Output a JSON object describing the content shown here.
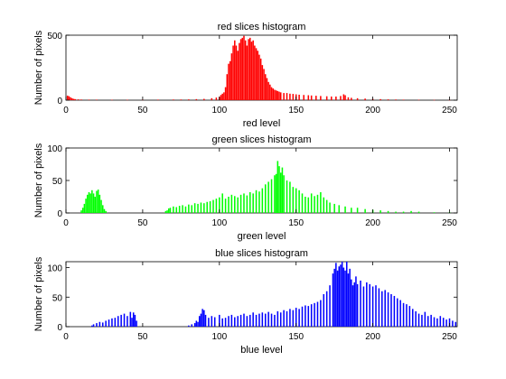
{
  "chart_data": [
    {
      "type": "bar",
      "title": "red slices histogram",
      "xlabel": "red level",
      "ylabel": "Number of pixels",
      "color": "#ff0000",
      "xlim": [
        0,
        255
      ],
      "ylim": [
        0,
        500
      ],
      "xticks": [
        0,
        50,
        100,
        150,
        200,
        250
      ],
      "yticks": [
        0,
        500
      ],
      "grid": false,
      "points": [
        [
          1,
          35
        ],
        [
          2,
          30
        ],
        [
          3,
          22
        ],
        [
          4,
          15
        ],
        [
          5,
          10
        ],
        [
          6,
          8
        ],
        [
          8,
          6
        ],
        [
          10,
          5
        ],
        [
          15,
          4
        ],
        [
          20,
          4
        ],
        [
          30,
          3
        ],
        [
          40,
          3
        ],
        [
          50,
          3
        ],
        [
          60,
          4
        ],
        [
          70,
          5
        ],
        [
          75,
          5
        ],
        [
          80,
          6
        ],
        [
          85,
          8
        ],
        [
          90,
          10
        ],
        [
          95,
          15
        ],
        [
          98,
          20
        ],
        [
          100,
          25
        ],
        [
          101,
          40
        ],
        [
          102,
          50
        ],
        [
          103,
          60
        ],
        [
          104,
          100
        ],
        [
          105,
          200
        ],
        [
          106,
          280
        ],
        [
          107,
          300
        ],
        [
          108,
          360
        ],
        [
          109,
          420
        ],
        [
          110,
          460
        ],
        [
          111,
          420
        ],
        [
          112,
          380
        ],
        [
          113,
          440
        ],
        [
          114,
          470
        ],
        [
          115,
          480
        ],
        [
          116,
          495
        ],
        [
          117,
          460
        ],
        [
          118,
          420
        ],
        [
          119,
          470
        ],
        [
          120,
          480
        ],
        [
          121,
          450
        ],
        [
          122,
          460
        ],
        [
          123,
          420
        ],
        [
          124,
          400
        ],
        [
          125,
          380
        ],
        [
          126,
          350
        ],
        [
          127,
          320
        ],
        [
          128,
          270
        ],
        [
          129,
          240
        ],
        [
          130,
          200
        ],
        [
          131,
          170
        ],
        [
          132,
          140
        ],
        [
          133,
          120
        ],
        [
          134,
          100
        ],
        [
          135,
          90
        ],
        [
          136,
          80
        ],
        [
          137,
          75
        ],
        [
          138,
          70
        ],
        [
          139,
          65
        ],
        [
          140,
          60
        ],
        [
          142,
          55
        ],
        [
          144,
          55
        ],
        [
          146,
          50
        ],
        [
          148,
          48
        ],
        [
          150,
          45
        ],
        [
          152,
          42
        ],
        [
          155,
          40
        ],
        [
          158,
          38
        ],
        [
          160,
          36
        ],
        [
          163,
          34
        ],
        [
          166,
          32
        ],
        [
          170,
          30
        ],
        [
          173,
          28
        ],
        [
          176,
          28
        ],
        [
          179,
          32
        ],
        [
          181,
          45
        ],
        [
          182,
          38
        ],
        [
          184,
          22
        ],
        [
          186,
          18
        ],
        [
          190,
          15
        ],
        [
          195,
          12
        ],
        [
          200,
          10
        ],
        [
          205,
          8
        ],
        [
          210,
          6
        ],
        [
          215,
          5
        ],
        [
          220,
          4
        ],
        [
          230,
          3
        ],
        [
          240,
          2
        ],
        [
          250,
          2
        ]
      ]
    },
    {
      "type": "bar",
      "title": "green slices histogram",
      "xlabel": "green level",
      "ylabel": "Number of pixels",
      "color": "#00ff00",
      "xlim": [
        0,
        255
      ],
      "ylim": [
        0,
        100
      ],
      "xticks": [
        0,
        50,
        100,
        150,
        200,
        250
      ],
      "yticks": [
        0,
        50,
        100
      ],
      "grid": false,
      "points": [
        [
          10,
          4
        ],
        [
          11,
          8
        ],
        [
          12,
          14
        ],
        [
          13,
          22
        ],
        [
          14,
          28
        ],
        [
          15,
          32
        ],
        [
          16,
          30
        ],
        [
          17,
          35
        ],
        [
          18,
          30
        ],
        [
          19,
          25
        ],
        [
          20,
          34
        ],
        [
          21,
          36
        ],
        [
          22,
          28
        ],
        [
          23,
          20
        ],
        [
          24,
          12
        ],
        [
          25,
          6
        ],
        [
          26,
          3
        ],
        [
          65,
          3
        ],
        [
          66,
          4
        ],
        [
          67,
          7
        ],
        [
          68,
          8
        ],
        [
          70,
          10
        ],
        [
          72,
          9
        ],
        [
          74,
          11
        ],
        [
          76,
          12
        ],
        [
          78,
          10
        ],
        [
          80,
          13
        ],
        [
          82,
          12
        ],
        [
          84,
          15
        ],
        [
          86,
          14
        ],
        [
          88,
          16
        ],
        [
          90,
          15
        ],
        [
          92,
          17
        ],
        [
          94,
          18
        ],
        [
          96,
          20
        ],
        [
          98,
          22
        ],
        [
          100,
          24
        ],
        [
          102,
          30
        ],
        [
          104,
          22
        ],
        [
          106,
          25
        ],
        [
          108,
          28
        ],
        [
          110,
          26
        ],
        [
          112,
          24
        ],
        [
          114,
          28
        ],
        [
          116,
          30
        ],
        [
          118,
          27
        ],
        [
          120,
          32
        ],
        [
          122,
          30
        ],
        [
          124,
          35
        ],
        [
          126,
          33
        ],
        [
          128,
          38
        ],
        [
          130,
          44
        ],
        [
          132,
          48
        ],
        [
          134,
          52
        ],
        [
          136,
          58
        ],
        [
          137,
          60
        ],
        [
          138,
          80
        ],
        [
          139,
          72
        ],
        [
          140,
          62
        ],
        [
          141,
          70
        ],
        [
          142,
          58
        ],
        [
          144,
          50
        ],
        [
          146,
          48
        ],
        [
          148,
          40
        ],
        [
          150,
          38
        ],
        [
          152,
          35
        ],
        [
          154,
          30
        ],
        [
          156,
          25
        ],
        [
          158,
          24
        ],
        [
          160,
          30
        ],
        [
          162,
          26
        ],
        [
          164,
          28
        ],
        [
          166,
          32
        ],
        [
          168,
          24
        ],
        [
          170,
          20
        ],
        [
          172,
          16
        ],
        [
          175,
          14
        ],
        [
          178,
          12
        ],
        [
          182,
          10
        ],
        [
          186,
          8
        ],
        [
          190,
          8
        ],
        [
          195,
          6
        ],
        [
          200,
          5
        ],
        [
          205,
          4
        ],
        [
          210,
          3
        ],
        [
          215,
          2
        ],
        [
          220,
          2
        ],
        [
          225,
          3
        ],
        [
          230,
          2
        ],
        [
          240,
          1
        ],
        [
          250,
          1
        ]
      ]
    },
    {
      "type": "bar",
      "title": "blue slices histogram",
      "xlabel": "blue level",
      "ylabel": "Number of pixels",
      "color": "#0000ff",
      "xlim": [
        0,
        255
      ],
      "ylim": [
        0,
        110
      ],
      "xticks": [
        0,
        50,
        100,
        150,
        200,
        250
      ],
      "yticks": [
        0,
        50,
        100
      ],
      "grid": false,
      "points": [
        [
          17,
          2
        ],
        [
          18,
          4
        ],
        [
          20,
          6
        ],
        [
          22,
          8
        ],
        [
          24,
          7
        ],
        [
          26,
          10
        ],
        [
          28,
          12
        ],
        [
          30,
          14
        ],
        [
          32,
          15
        ],
        [
          34,
          18
        ],
        [
          36,
          20
        ],
        [
          38,
          22
        ],
        [
          40,
          18
        ],
        [
          42,
          25
        ],
        [
          43,
          15
        ],
        [
          44,
          24
        ],
        [
          45,
          20
        ],
        [
          46,
          10
        ],
        [
          80,
          2
        ],
        [
          82,
          4
        ],
        [
          84,
          6
        ],
        [
          85,
          10
        ],
        [
          86,
          8
        ],
        [
          87,
          18
        ],
        [
          88,
          22
        ],
        [
          89,
          30
        ],
        [
          90,
          28
        ],
        [
          91,
          20
        ],
        [
          93,
          15
        ],
        [
          95,
          18
        ],
        [
          97,
          16
        ],
        [
          100,
          20
        ],
        [
          102,
          14
        ],
        [
          104,
          15
        ],
        [
          106,
          18
        ],
        [
          108,
          20
        ],
        [
          110,
          16
        ],
        [
          112,
          18
        ],
        [
          114,
          20
        ],
        [
          116,
          22
        ],
        [
          118,
          18
        ],
        [
          120,
          20
        ],
        [
          122,
          24
        ],
        [
          124,
          20
        ],
        [
          126,
          22
        ],
        [
          128,
          24
        ],
        [
          130,
          22
        ],
        [
          132,
          25
        ],
        [
          134,
          22
        ],
        [
          136,
          20
        ],
        [
          138,
          26
        ],
        [
          140,
          24
        ],
        [
          142,
          28
        ],
        [
          144,
          26
        ],
        [
          146,
          30
        ],
        [
          148,
          28
        ],
        [
          150,
          32
        ],
        [
          152,
          30
        ],
        [
          154,
          34
        ],
        [
          156,
          36
        ],
        [
          158,
          35
        ],
        [
          160,
          38
        ],
        [
          162,
          40
        ],
        [
          164,
          42
        ],
        [
          166,
          45
        ],
        [
          168,
          55
        ],
        [
          170,
          60
        ],
        [
          172,
          70
        ],
        [
          174,
          90
        ],
        [
          175,
          98
        ],
        [
          176,
          108
        ],
        [
          177,
          95
        ],
        [
          178,
          102
        ],
        [
          179,
          105
        ],
        [
          180,
          110
        ],
        [
          181,
          100
        ],
        [
          182,
          95
        ],
        [
          183,
          110
        ],
        [
          184,
          90
        ],
        [
          185,
          98
        ],
        [
          186,
          80
        ],
        [
          187,
          70
        ],
        [
          188,
          75
        ],
        [
          189,
          85
        ],
        [
          190,
          72
        ],
        [
          192,
          78
        ],
        [
          194,
          68
        ],
        [
          196,
          75
        ],
        [
          198,
          72
        ],
        [
          200,
          68
        ],
        [
          202,
          70
        ],
        [
          204,
          65
        ],
        [
          206,
          60
        ],
        [
          208,
          62
        ],
        [
          210,
          58
        ],
        [
          212,
          55
        ],
        [
          214,
          52
        ],
        [
          216,
          48
        ],
        [
          218,
          45
        ],
        [
          220,
          40
        ],
        [
          222,
          38
        ],
        [
          224,
          35
        ],
        [
          226,
          30
        ],
        [
          228,
          26
        ],
        [
          230,
          22
        ],
        [
          232,
          20
        ],
        [
          234,
          25
        ],
        [
          236,
          18
        ],
        [
          238,
          20
        ],
        [
          240,
          16
        ],
        [
          242,
          14
        ],
        [
          244,
          18
        ],
        [
          246,
          15
        ],
        [
          248,
          12
        ],
        [
          250,
          14
        ],
        [
          252,
          10
        ],
        [
          254,
          8
        ]
      ]
    }
  ]
}
